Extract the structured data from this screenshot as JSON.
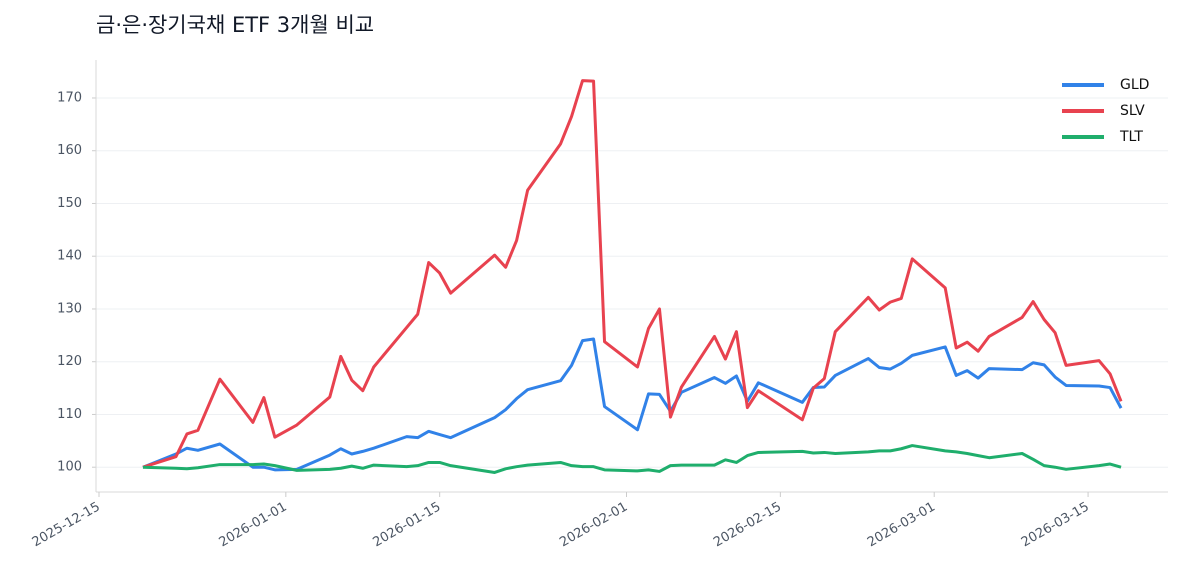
{
  "chart_data": {
    "type": "line",
    "title": "금·은·장기국채 ETF 3개월 비교",
    "x": [
      "2025-12-19",
      "2025-12-22",
      "2025-12-23",
      "2025-12-24",
      "2025-12-26",
      "2025-12-29",
      "2025-12-30",
      "2025-12-31",
      "2026-01-02",
      "2026-01-05",
      "2026-01-06",
      "2026-01-07",
      "2026-01-08",
      "2026-01-09",
      "2026-01-12",
      "2026-01-13",
      "2026-01-14",
      "2026-01-15",
      "2026-01-16",
      "2026-01-20",
      "2026-01-21",
      "2026-01-22",
      "2026-01-23",
      "2026-01-26",
      "2026-01-27",
      "2026-01-28",
      "2026-01-29",
      "2026-01-30",
      "2026-02-02",
      "2026-02-03",
      "2026-02-04",
      "2026-02-05",
      "2026-02-06",
      "2026-02-09",
      "2026-02-10",
      "2026-02-11",
      "2026-02-12",
      "2026-02-13",
      "2026-02-17",
      "2026-02-18",
      "2026-02-19",
      "2026-02-20",
      "2026-02-23",
      "2026-02-24",
      "2026-02-25",
      "2026-02-26",
      "2026-02-27",
      "2026-03-02",
      "2026-03-03",
      "2026-03-04",
      "2026-03-05",
      "2026-03-06",
      "2026-03-09",
      "2026-03-10",
      "2026-03-11",
      "2026-03-12",
      "2026-03-13",
      "2026-03-16",
      "2026-03-17",
      "2026-03-18"
    ],
    "series": [
      {
        "name": "GLD",
        "color": "#3182e8",
        "values": [
          100,
          102.5,
          103.6,
          103.2,
          104.4,
          100,
          100,
          99.5,
          99.6,
          102.3,
          103.5,
          102.5,
          103,
          103.6,
          105.8,
          105.6,
          106.8,
          106.2,
          105.6,
          109.4,
          110.9,
          113,
          114.7,
          116.4,
          119.3,
          124,
          124.3,
          111.5,
          107.1,
          113.9,
          113.8,
          110.6,
          114.2,
          117,
          115.9,
          117.3,
          112.5,
          116,
          112.3,
          115.1,
          115.2,
          117.4,
          120.6,
          118.9,
          118.6,
          119.7,
          121.2,
          122.8,
          117.4,
          118.3,
          116.9,
          118.7,
          118.5,
          119.8,
          119.4,
          117.1,
          115.5,
          115.4,
          115.1,
          111.2
        ]
      },
      {
        "name": "SLV",
        "color": "#e8424f",
        "values": [
          100,
          102,
          106.3,
          107,
          116.7,
          108.5,
          113.2,
          105.7,
          108,
          113.3,
          121,
          116.5,
          114.5,
          119,
          126.5,
          129,
          138.8,
          136.8,
          133,
          140.2,
          137.9,
          143,
          152.5,
          161.3,
          166.5,
          173.3,
          173.2,
          123.8,
          119,
          126.3,
          130,
          109.5,
          115.2,
          124.8,
          120.5,
          125.7,
          111.3,
          114.5,
          109,
          115,
          116.8,
          125.7,
          132.2,
          129.8,
          131.3,
          132,
          139.5,
          134,
          122.6,
          123.7,
          122,
          124.8,
          128.4,
          131.4,
          128,
          125.5,
          119.3,
          120.2,
          117.7,
          112.5
        ]
      },
      {
        "name": "TLT",
        "color": "#1fae6c",
        "values": [
          100,
          99.8,
          99.7,
          99.9,
          100.5,
          100.5,
          100.6,
          100.3,
          99.4,
          99.6,
          99.8,
          100.2,
          99.8,
          100.4,
          100.1,
          100.3,
          100.9,
          100.9,
          100.3,
          99,
          99.7,
          100.1,
          100.4,
          100.9,
          100.3,
          100.1,
          100.1,
          99.5,
          99.3,
          99.5,
          99.2,
          100.3,
          100.4,
          100.4,
          101.4,
          100.9,
          102.2,
          102.8,
          103,
          102.7,
          102.8,
          102.6,
          102.9,
          103.1,
          103.1,
          103.5,
          104.1,
          103.1,
          102.9,
          102.6,
          102.2,
          101.8,
          102.6,
          101.5,
          100.3,
          100,
          99.6,
          100.3,
          100.6,
          100
        ]
      }
    ],
    "xlim": [
      "2025-12-15",
      "2026-03-22"
    ],
    "xticks": [
      "2025-12-15",
      "2026-01-01",
      "2026-01-15",
      "2026-02-01",
      "2026-02-15",
      "2026-03-01",
      "2026-03-15"
    ],
    "ylim": [
      95.3,
      177.2
    ],
    "yticks": [
      100,
      110,
      120,
      130,
      140,
      150,
      160,
      170
    ],
    "grid": true,
    "legend": "upper right"
  }
}
